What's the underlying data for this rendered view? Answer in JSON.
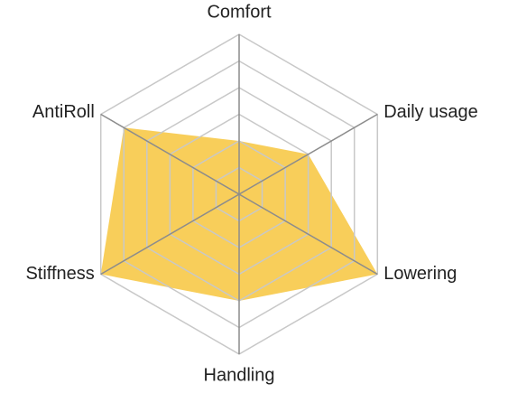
{
  "chart_data": {
    "type": "radar",
    "categories": [
      "Comfort",
      "Daily usage",
      "Lowering",
      "Handling",
      "Stiffness",
      "AntiRoll"
    ],
    "values": [
      2,
      3,
      6,
      4,
      6,
      5
    ],
    "color": "#f7c948",
    "rlim": [
      0,
      6
    ],
    "rticks": [
      1,
      2,
      3,
      4,
      5,
      6
    ],
    "grid": true
  }
}
